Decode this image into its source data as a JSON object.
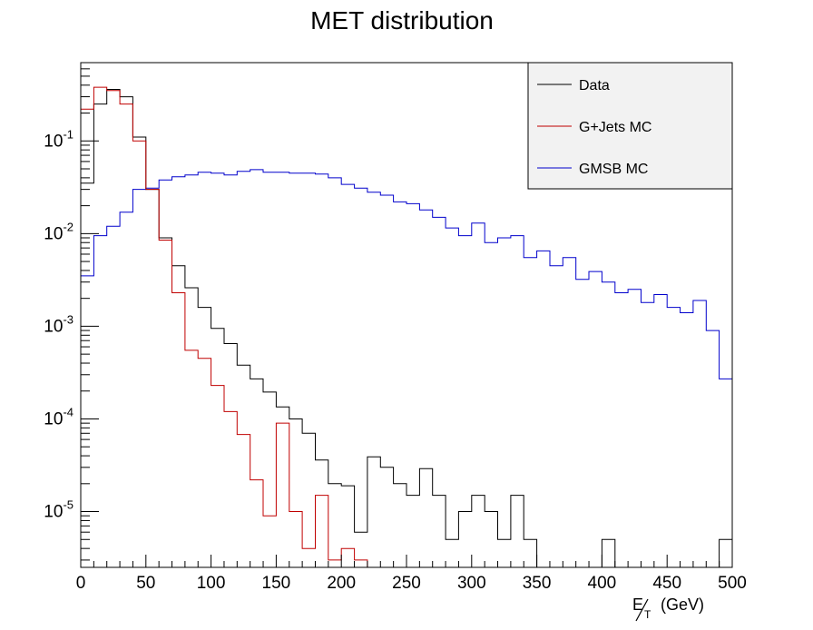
{
  "chart_data": {
    "type": "step",
    "title": "MET distribution",
    "xlabel": "E/T (GeV)",
    "ylabel": "",
    "xlim": [
      0,
      500
    ],
    "ylim": [
      2.5e-06,
      0.7
    ],
    "yscale": "log",
    "bin_width": 10,
    "x_ticks": [
      "0",
      "50",
      "100",
      "150",
      "200",
      "250",
      "300",
      "350",
      "400",
      "450",
      "500"
    ],
    "y_ticks": [
      {
        "base": "10",
        "exp": "-1",
        "value": 0.1
      },
      {
        "base": "10",
        "exp": "-2",
        "value": 0.01
      },
      {
        "base": "10",
        "exp": "-3",
        "value": 0.001
      },
      {
        "base": "10",
        "exp": "-4",
        "value": 0.0001
      },
      {
        "base": "10",
        "exp": "-5",
        "value": 1e-05
      }
    ],
    "legend_position": "top-right",
    "series": [
      {
        "name": "Data",
        "color": "#000000",
        "values": [
          0.035,
          0.25,
          0.36,
          0.3,
          0.11,
          0.03,
          0.009,
          0.0045,
          0.0026,
          0.0016,
          0.00095,
          0.00065,
          0.00038,
          0.00027,
          0.000195,
          0.000135,
          0.0001,
          7e-05,
          3.6e-05,
          2e-05,
          1.9e-05,
          6e-06,
          3.9e-05,
          3e-05,
          2e-05,
          1.5e-05,
          2.9e-05,
          1.5e-05,
          5e-06,
          1e-05,
          1.5e-05,
          1e-05,
          5e-06,
          1.5e-05,
          5e-06,
          0,
          0,
          0,
          0,
          0,
          5e-06,
          0,
          0,
          0,
          0,
          0,
          0,
          0,
          0,
          5e-06
        ]
      },
      {
        "name": "G+Jets MC",
        "color": "#c00000",
        "values": [
          0.22,
          0.38,
          0.35,
          0.25,
          0.1,
          0.03,
          0.0085,
          0.0023,
          0.00055,
          0.00045,
          0.00023,
          0.00012,
          6.8e-05,
          2.2e-05,
          9e-06,
          9e-05,
          1e-05,
          4e-06,
          1.5e-05,
          3e-06,
          4e-06,
          3e-06,
          0,
          0,
          0,
          0,
          0,
          0,
          0,
          0,
          0,
          0,
          0,
          0,
          0,
          0,
          0,
          0,
          0,
          0,
          0,
          0,
          0,
          0,
          0,
          0,
          0,
          0,
          0,
          0
        ]
      },
      {
        "name": "GMSB MC",
        "color": "#0000cc",
        "values": [
          0.0035,
          0.0095,
          0.012,
          0.017,
          0.03,
          0.031,
          0.038,
          0.041,
          0.043,
          0.046,
          0.045,
          0.043,
          0.047,
          0.049,
          0.046,
          0.046,
          0.045,
          0.045,
          0.044,
          0.04,
          0.034,
          0.031,
          0.028,
          0.026,
          0.022,
          0.021,
          0.018,
          0.015,
          0.0115,
          0.0095,
          0.013,
          0.008,
          0.009,
          0.0095,
          0.0055,
          0.0065,
          0.0045,
          0.0055,
          0.0032,
          0.0039,
          0.003,
          0.0023,
          0.0025,
          0.0018,
          0.0022,
          0.0016,
          0.0014,
          0.0019,
          0.0009,
          0.00027
        ]
      }
    ]
  }
}
